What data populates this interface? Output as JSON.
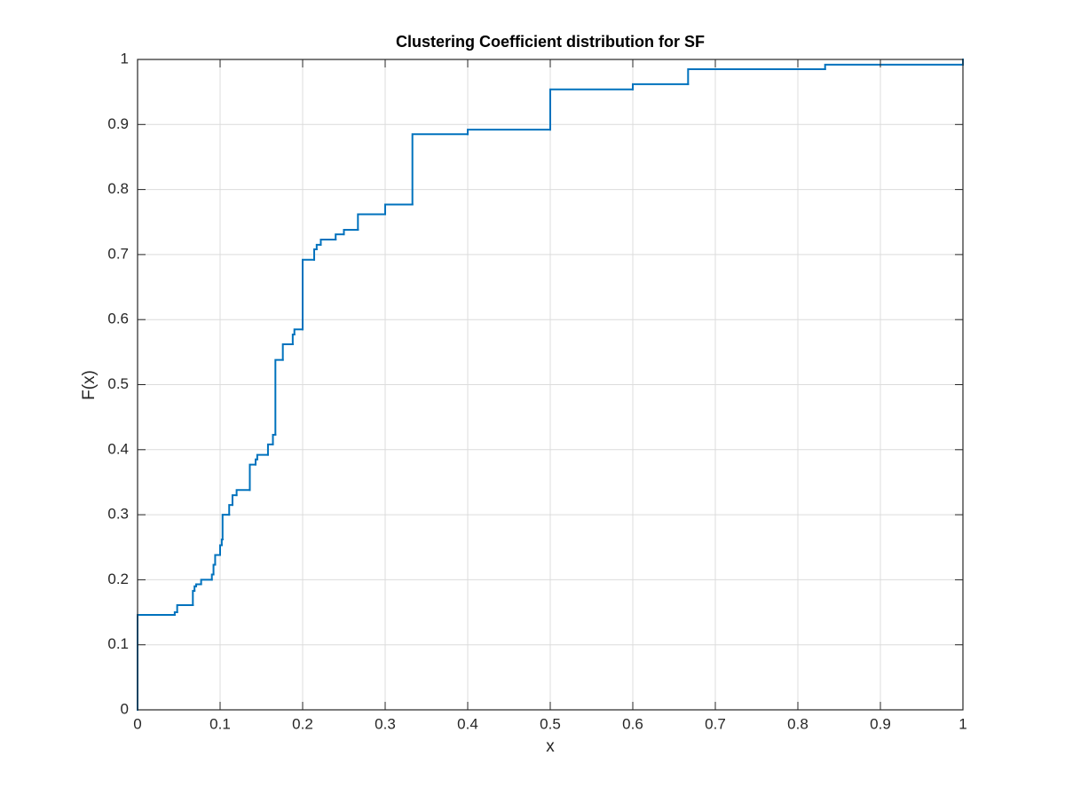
{
  "chart_data": {
    "type": "stairs",
    "title": "Clustering Coefficient distribution for SF",
    "x_label": "x",
    "y_label": "F(x)",
    "color": "#0072bd",
    "grid": true,
    "xlim": [
      0,
      1
    ],
    "ylim": [
      0,
      1
    ],
    "xticks": [
      0,
      0.1,
      0.2,
      0.3,
      0.4,
      0.5,
      0.6,
      0.7,
      0.8,
      0.9,
      1
    ],
    "yticks": [
      0,
      0.1,
      0.2,
      0.3,
      0.4,
      0.5,
      0.6,
      0.7,
      0.8,
      0.9,
      1
    ],
    "x": [
      0,
      0,
      0.045,
      0.048,
      0.067,
      0.069,
      0.071,
      0.077,
      0.09,
      0.092,
      0.094,
      0.1,
      0.102,
      0.103,
      0.111,
      0.115,
      0.12,
      0.136,
      0.143,
      0.145,
      0.158,
      0.164,
      0.167,
      0.176,
      0.188,
      0.19,
      0.2,
      0.214,
      0.217,
      0.222,
      0.24,
      0.25,
      0.267,
      0.3,
      0.333,
      0.4,
      0.5,
      0.6,
      0.667,
      0.833,
      1
    ],
    "values": [
      0,
      0.146,
      0.15,
      0.161,
      0.183,
      0.19,
      0.193,
      0.2,
      0.208,
      0.223,
      0.238,
      0.253,
      0.262,
      0.3,
      0.315,
      0.33,
      0.338,
      0.377,
      0.385,
      0.392,
      0.408,
      0.423,
      0.538,
      0.562,
      0.577,
      0.585,
      0.692,
      0.708,
      0.715,
      0.723,
      0.731,
      0.738,
      0.762,
      0.777,
      0.885,
      0.892,
      0.954,
      0.962,
      0.985,
      0.992,
      1
    ]
  }
}
